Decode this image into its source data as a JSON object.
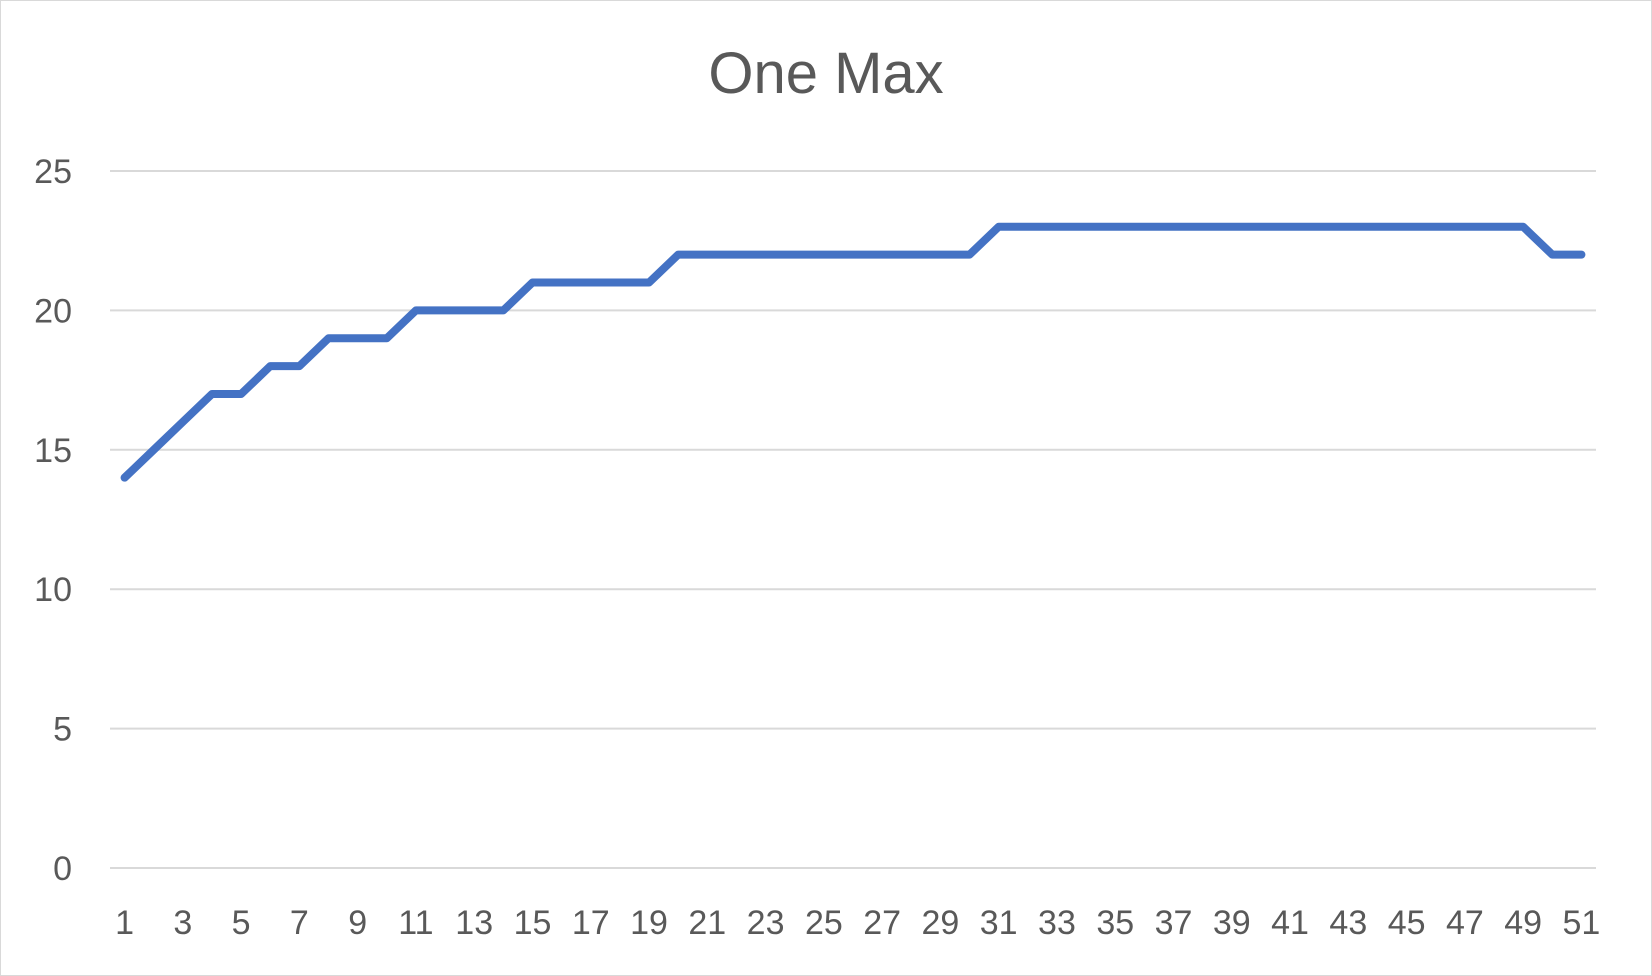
{
  "chart_data": {
    "type": "line",
    "title": "One Max",
    "xlabel": "",
    "ylabel": "",
    "x": [
      1,
      2,
      3,
      4,
      5,
      6,
      7,
      8,
      9,
      10,
      11,
      12,
      13,
      14,
      15,
      16,
      17,
      18,
      19,
      20,
      21,
      22,
      23,
      24,
      25,
      26,
      27,
      28,
      29,
      30,
      31,
      32,
      33,
      34,
      35,
      36,
      37,
      38,
      39,
      40,
      41,
      42,
      43,
      44,
      45,
      46,
      47,
      48,
      49,
      50,
      51
    ],
    "x_tick_labels": [
      "1",
      "3",
      "5",
      "7",
      "9",
      "11",
      "13",
      "15",
      "17",
      "19",
      "21",
      "23",
      "25",
      "27",
      "29",
      "31",
      "33",
      "35",
      "37",
      "39",
      "41",
      "43",
      "45",
      "47",
      "49",
      "51"
    ],
    "y_tick_labels": [
      "0",
      "5",
      "10",
      "15",
      "20",
      "25"
    ],
    "y_ticks": [
      0,
      5,
      10,
      15,
      20,
      25
    ],
    "ylim": [
      0,
      25
    ],
    "grid": true,
    "legend": "none",
    "series": [
      {
        "color": "#4472c4",
        "values": [
          14,
          15,
          16,
          17,
          17,
          18,
          18,
          19,
          19,
          19,
          20,
          20,
          20,
          20,
          21,
          21,
          21,
          21,
          21,
          22,
          22,
          22,
          22,
          22,
          22,
          22,
          22,
          22,
          22,
          22,
          23,
          23,
          23,
          23,
          23,
          23,
          23,
          23,
          23,
          23,
          23,
          23,
          23,
          23,
          23,
          23,
          23,
          23,
          23,
          22,
          22
        ]
      }
    ]
  }
}
